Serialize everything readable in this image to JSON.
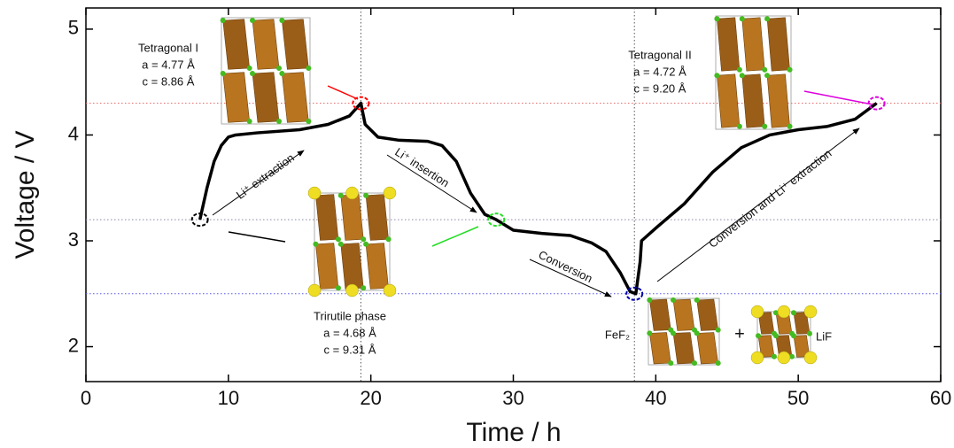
{
  "chart_data": {
    "type": "line",
    "xlabel": "Time / h",
    "ylabel": "Voltage / V",
    "xlim": [
      0,
      60
    ],
    "ylim": [
      1.67,
      5.2
    ],
    "xticks": [
      0,
      10,
      20,
      30,
      40,
      50,
      60
    ],
    "yticks": [
      2,
      3,
      4,
      5
    ],
    "x": [
      8,
      8.5,
      9,
      9.5,
      10,
      10.5,
      12,
      15,
      17,
      18.5,
      19.3,
      19.6,
      20.5,
      22,
      24,
      25,
      26,
      27,
      28,
      28.8,
      30,
      32,
      34,
      35.5,
      36.5,
      37.5,
      38.2,
      38.6,
      38.9,
      39,
      40,
      42,
      44,
      46,
      48,
      50,
      52,
      54,
      55.5
    ],
    "series": [
      {
        "color": "#000000",
        "values": [
          3.2,
          3.5,
          3.75,
          3.9,
          3.98,
          4.0,
          4.02,
          4.05,
          4.1,
          4.18,
          4.3,
          4.1,
          3.98,
          3.95,
          3.94,
          3.9,
          3.75,
          3.45,
          3.25,
          3.2,
          3.1,
          3.07,
          3.05,
          2.98,
          2.9,
          2.7,
          2.52,
          2.5,
          2.8,
          3.0,
          3.12,
          3.35,
          3.65,
          3.88,
          4.0,
          4.05,
          4.08,
          4.15,
          4.3
        ]
      }
    ],
    "hlines": [
      {
        "value": 4.3,
        "color": "#e66060"
      },
      {
        "value": 3.2,
        "color": "#8888aa"
      },
      {
        "value": 2.5,
        "color": "#5555ee"
      }
    ],
    "vlines": [
      19.3,
      38.5
    ],
    "highlights": [
      {
        "x": 8,
        "y": 3.2,
        "color": "#000000"
      },
      {
        "x": 19.3,
        "y": 4.3,
        "color": "#ff0000"
      },
      {
        "x": 28.8,
        "y": 3.2,
        "color": "#22dd22"
      },
      {
        "x": 38.5,
        "y": 2.5,
        "color": "#0000aa"
      },
      {
        "x": 55.5,
        "y": 4.3,
        "color": "#dd00dd"
      }
    ],
    "phases": [
      {
        "name": "Tetragonal I",
        "a": "a = 4.77 Å",
        "c": "c = 8.86 Å"
      },
      {
        "name": "Tetragonal II",
        "a": "a = 4.72 Å",
        "c": "c = 9.20 Å"
      },
      {
        "name": "Trirutile phase",
        "a": "a = 4.68 Å",
        "c": "c = 9.31 Å"
      }
    ],
    "process_labels": [
      "Li⁺ extraction",
      "Li⁺ insertion",
      "Conversion",
      "Conversion and Li⁺ extraction"
    ],
    "products": [
      "FeF₂",
      "+",
      "LiF"
    ]
  }
}
